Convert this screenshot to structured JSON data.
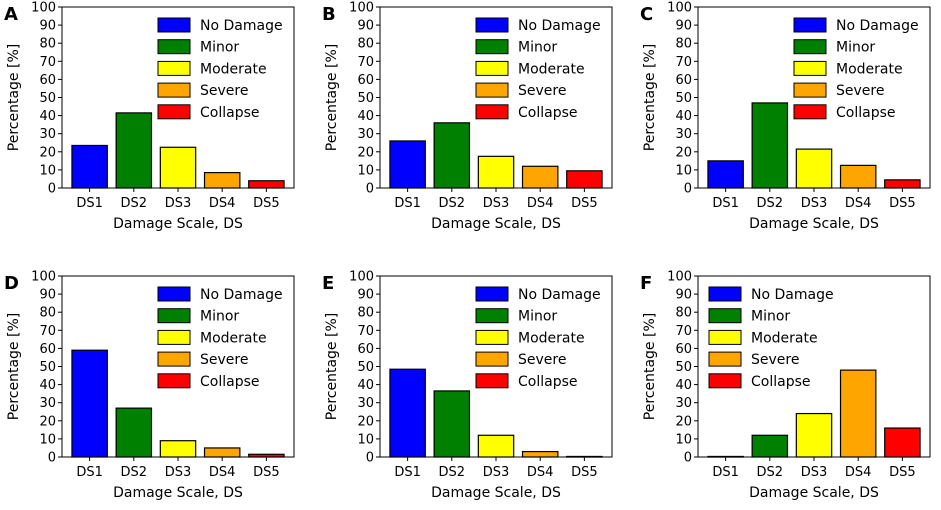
{
  "colors": {
    "DS1": "#0000ff",
    "DS2": "#008000",
    "DS3": "#ffff00",
    "DS4": "#ffa500",
    "DS5": "#ff0000"
  },
  "chart_data": [
    {
      "panel": "A",
      "type": "bar",
      "categories": [
        "DS1",
        "DS2",
        "DS3",
        "DS4",
        "DS5"
      ],
      "values": [
        23.5,
        41.5,
        22.5,
        8.5,
        4
      ],
      "xlabel": "Damage Scale, DS",
      "ylabel": "Percentage [%]",
      "ylim": [
        0,
        100
      ],
      "yticks": [
        0,
        10,
        20,
        30,
        40,
        50,
        60,
        70,
        80,
        90,
        100
      ],
      "legend": [
        "No Damage",
        "Minor",
        "Moderate",
        "Severe",
        "Collapse"
      ],
      "legend_position": "top-right"
    },
    {
      "panel": "B",
      "type": "bar",
      "categories": [
        "DS1",
        "DS2",
        "DS3",
        "DS4",
        "DS5"
      ],
      "values": [
        26,
        36,
        17.5,
        12,
        9.5
      ],
      "xlabel": "Damage Scale, DS",
      "ylabel": "Percentage [%]",
      "ylim": [
        0,
        100
      ],
      "yticks": [
        0,
        10,
        20,
        30,
        40,
        50,
        60,
        70,
        80,
        90,
        100
      ],
      "legend": [
        "No Damage",
        "Minor",
        "Moderate",
        "Severe",
        "Collapse"
      ],
      "legend_position": "top-right"
    },
    {
      "panel": "C",
      "type": "bar",
      "categories": [
        "DS1",
        "DS2",
        "DS3",
        "DS4",
        "DS5"
      ],
      "values": [
        15,
        47,
        21.5,
        12.5,
        4.5
      ],
      "xlabel": "Damage Scale, DS",
      "ylabel": "Percentage [%]",
      "ylim": [
        0,
        100
      ],
      "yticks": [
        0,
        10,
        20,
        30,
        40,
        50,
        60,
        70,
        80,
        90,
        100
      ],
      "legend": [
        "No Damage",
        "Minor",
        "Moderate",
        "Severe",
        "Collapse"
      ],
      "legend_position": "top-right"
    },
    {
      "panel": "D",
      "type": "bar",
      "categories": [
        "DS1",
        "DS2",
        "DS3",
        "DS4",
        "DS5"
      ],
      "values": [
        59,
        27,
        9,
        5,
        1.5
      ],
      "xlabel": "Damage Scale, DS",
      "ylabel": "Percentage [%]",
      "ylim": [
        0,
        100
      ],
      "yticks": [
        0,
        10,
        20,
        30,
        40,
        50,
        60,
        70,
        80,
        90,
        100
      ],
      "legend": [
        "No Damage",
        "Minor",
        "Moderate",
        "Severe",
        "Collapse"
      ],
      "legend_position": "top-right"
    },
    {
      "panel": "E",
      "type": "bar",
      "categories": [
        "DS1",
        "DS2",
        "DS3",
        "DS4",
        "DS5"
      ],
      "values": [
        48.5,
        36.5,
        12,
        3,
        0.3
      ],
      "xlabel": "Damage Scale, DS",
      "ylabel": "Percentage [%]",
      "ylim": [
        0,
        100
      ],
      "yticks": [
        0,
        10,
        20,
        30,
        40,
        50,
        60,
        70,
        80,
        90,
        100
      ],
      "legend": [
        "No Damage",
        "Minor",
        "Moderate",
        "Severe",
        "Collapse"
      ],
      "legend_position": "top-right"
    },
    {
      "panel": "F",
      "type": "bar",
      "categories": [
        "DS1",
        "DS2",
        "DS3",
        "DS4",
        "DS5"
      ],
      "values": [
        0.3,
        12,
        24,
        48,
        16
      ],
      "xlabel": "Damage Scale, DS",
      "ylabel": "Percentage [%]",
      "ylim": [
        0,
        100
      ],
      "yticks": [
        0,
        10,
        20,
        30,
        40,
        50,
        60,
        70,
        80,
        90,
        100
      ],
      "legend": [
        "No Damage",
        "Minor",
        "Moderate",
        "Severe",
        "Collapse"
      ],
      "legend_position": "top-left"
    }
  ]
}
